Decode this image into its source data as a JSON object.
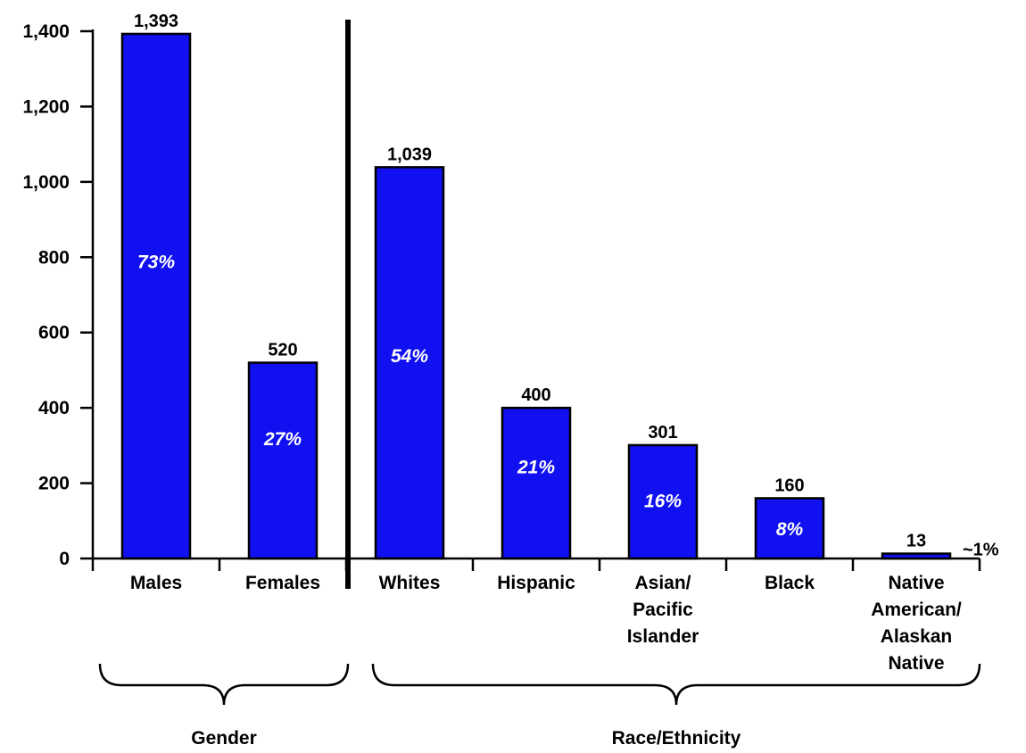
{
  "chart_data": {
    "type": "bar",
    "title": "",
    "xlabel": "",
    "ylabel": "",
    "ylim": [
      0,
      1400
    ],
    "yticks": [
      "0",
      "200",
      "400",
      "600",
      "800",
      "1,000",
      "1,200",
      "1,400"
    ],
    "tick_values": [
      0,
      200,
      400,
      600,
      800,
      1000,
      1200,
      1400
    ],
    "bar_color": "#1010f0",
    "categories": [
      {
        "label_lines": [
          "Males"
        ],
        "value": 1393,
        "value_label": "1,393",
        "pct": "73%",
        "pct_level": 790
      },
      {
        "label_lines": [
          "Females"
        ],
        "value": 520,
        "value_label": "520",
        "pct": "27%",
        "pct_level": 320
      },
      {
        "label_lines": [
          "Whites"
        ],
        "value": 1039,
        "value_label": "1,039",
        "pct": "54%",
        "pct_level": 540
      },
      {
        "label_lines": [
          "Hispanic"
        ],
        "value": 400,
        "value_label": "400",
        "pct": "21%",
        "pct_level": 245
      },
      {
        "label_lines": [
          "Asian/",
          "Pacific",
          "Islander"
        ],
        "value": 301,
        "value_label": "301",
        "pct": "16%",
        "pct_level": 155
      },
      {
        "label_lines": [
          "Black"
        ],
        "value": 160,
        "value_label": "160",
        "pct": "8%",
        "pct_level": 80
      },
      {
        "label_lines": [
          "Native",
          "American/",
          "Alaskan",
          "Native"
        ],
        "value": 13,
        "value_label": "13",
        "pct": "",
        "pct_level": 0
      }
    ],
    "side_note": "~1%",
    "groups": [
      {
        "label": "Gender",
        "categories": [
          0,
          1
        ]
      },
      {
        "label": "Race/Ethnicity",
        "categories": [
          2,
          3,
          4,
          5,
          6
        ]
      }
    ]
  }
}
